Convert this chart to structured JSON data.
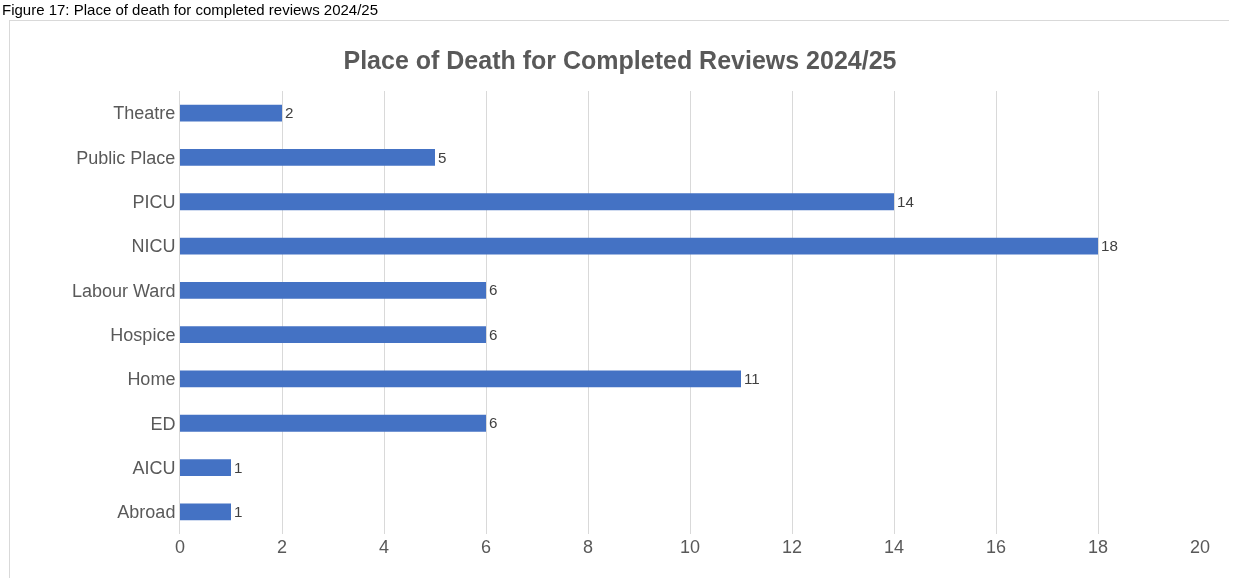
{
  "chart_data": {
    "type": "bar",
    "orientation": "horizontal",
    "title": "Place of Death for Completed Reviews 2024/25",
    "annotations": [
      "Figure 17: Place of death for completed reviews 2024/25"
    ],
    "categories": [
      "Theatre",
      "Public Place",
      "PICU",
      "NICU",
      "Labour Ward",
      "Hospice",
      "Home",
      "ED",
      "AICU",
      "Abroad"
    ],
    "values": [
      2,
      5,
      14,
      18,
      6,
      6,
      11,
      6,
      1,
      1
    ],
    "color": "#4472c4",
    "xlim": [
      0,
      20
    ],
    "xticks": [
      0,
      2,
      4,
      6,
      8,
      10,
      12,
      14,
      16,
      18,
      20
    ],
    "grid": "x",
    "data_labels": true
  }
}
